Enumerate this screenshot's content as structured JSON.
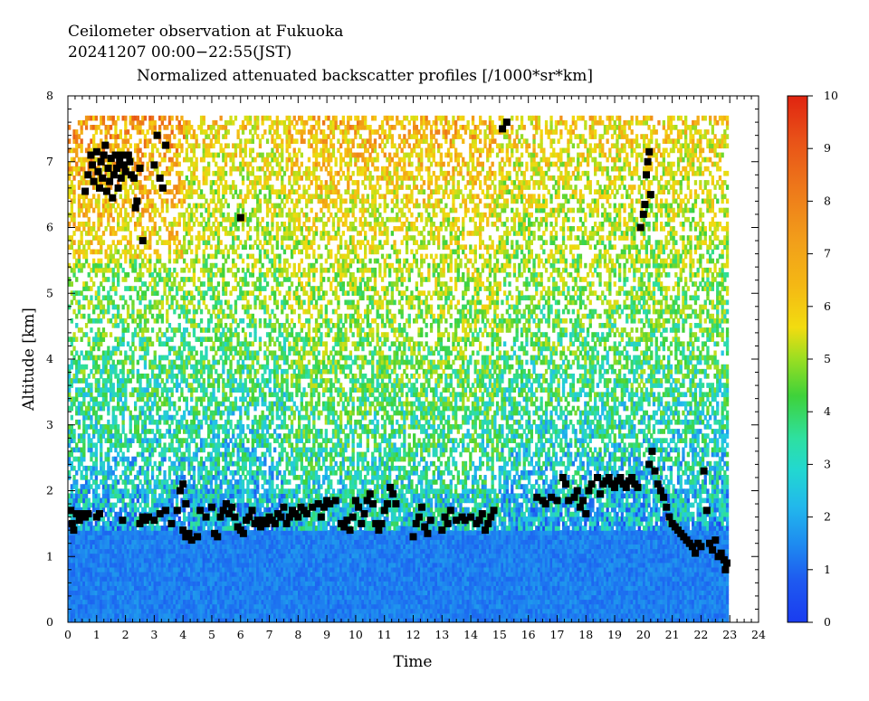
{
  "chart_data": {
    "type": "heatmap",
    "title_lines": [
      "Ceilometer observation at Fukuoka",
      "20241207  00:00−22:55(JST)"
    ],
    "subtitle": "Normalized attenuated backscatter profiles [/1000*sr*km]",
    "xlabel": "Time",
    "ylabel": "Altitude [km]",
    "xlim": [
      0,
      24
    ],
    "ylim": [
      0,
      8
    ],
    "x_ticks": [
      "0",
      "1",
      "2",
      "3",
      "4",
      "5",
      "6",
      "7",
      "8",
      "9",
      "10",
      "11",
      "12",
      "13",
      "14",
      "15",
      "16",
      "17",
      "18",
      "19",
      "20",
      "21",
      "22",
      "23",
      "24"
    ],
    "y_ticks": [
      "0",
      "1",
      "2",
      "3",
      "4",
      "5",
      "6",
      "7",
      "8"
    ],
    "data_end_time": 22.92,
    "colorbar": {
      "range": [
        0,
        10
      ],
      "ticks": [
        "0",
        "1",
        "2",
        "3",
        "4",
        "5",
        "6",
        "7",
        "8",
        "9",
        "10"
      ],
      "colors": [
        "#1a3cf0",
        "#1e7ef0",
        "#22c6e8",
        "#2ee0a0",
        "#3ed23a",
        "#b4e01e",
        "#f2dc10",
        "#f4b814",
        "#f08a1a",
        "#e85a18",
        "#e02410"
      ]
    },
    "cloud_base_series": {
      "name": "cloud base",
      "points": [
        [
          0.1,
          1.7
        ],
        [
          0.15,
          1.5
        ],
        [
          0.2,
          1.4
        ],
        [
          0.3,
          1.65
        ],
        [
          0.4,
          1.55
        ],
        [
          0.5,
          1.65
        ],
        [
          0.6,
          1.6
        ],
        [
          0.7,
          1.65
        ],
        [
          1.0,
          1.6
        ],
        [
          1.1,
          1.65
        ],
        [
          1.9,
          1.55
        ],
        [
          2.5,
          1.5
        ],
        [
          2.6,
          1.6
        ],
        [
          2.7,
          1.55
        ],
        [
          2.8,
          1.6
        ],
        [
          3.0,
          1.55
        ],
        [
          3.2,
          1.65
        ],
        [
          3.4,
          1.7
        ],
        [
          3.6,
          1.5
        ],
        [
          3.8,
          1.7
        ],
        [
          3.9,
          2.0
        ],
        [
          4.0,
          2.1
        ],
        [
          4.1,
          1.8
        ],
        [
          4.0,
          1.4
        ],
        [
          4.1,
          1.3
        ],
        [
          4.2,
          1.35
        ],
        [
          4.3,
          1.25
        ],
        [
          4.5,
          1.3
        ],
        [
          4.6,
          1.7
        ],
        [
          4.8,
          1.6
        ],
        [
          5.0,
          1.75
        ],
        [
          5.1,
          1.35
        ],
        [
          5.2,
          1.3
        ],
        [
          5.3,
          1.6
        ],
        [
          5.4,
          1.7
        ],
        [
          5.5,
          1.8
        ],
        [
          5.6,
          1.65
        ],
        [
          5.7,
          1.75
        ],
        [
          5.8,
          1.6
        ],
        [
          5.9,
          1.45
        ],
        [
          6.0,
          1.4
        ],
        [
          6.1,
          1.35
        ],
        [
          6.2,
          1.55
        ],
        [
          6.3,
          1.6
        ],
        [
          6.4,
          1.7
        ],
        [
          6.5,
          1.5
        ],
        [
          6.6,
          1.55
        ],
        [
          6.7,
          1.45
        ],
        [
          6.8,
          1.55
        ],
        [
          6.9,
          1.5
        ],
        [
          7.0,
          1.6
        ],
        [
          7.1,
          1.55
        ],
        [
          7.2,
          1.5
        ],
        [
          7.3,
          1.65
        ],
        [
          7.4,
          1.6
        ],
        [
          7.5,
          1.75
        ],
        [
          7.6,
          1.5
        ],
        [
          7.7,
          1.6
        ],
        [
          7.8,
          1.7
        ],
        [
          7.9,
          1.65
        ],
        [
          8.0,
          1.6
        ],
        [
          8.1,
          1.75
        ],
        [
          8.2,
          1.7
        ],
        [
          8.3,
          1.65
        ],
        [
          8.5,
          1.75
        ],
        [
          8.7,
          1.8
        ],
        [
          8.8,
          1.6
        ],
        [
          8.9,
          1.75
        ],
        [
          9.0,
          1.85
        ],
        [
          9.1,
          1.8
        ],
        [
          9.3,
          1.85
        ],
        [
          9.5,
          1.5
        ],
        [
          9.6,
          1.45
        ],
        [
          9.7,
          1.55
        ],
        [
          9.8,
          1.4
        ],
        [
          9.9,
          1.6
        ],
        [
          10.0,
          1.85
        ],
        [
          10.1,
          1.75
        ],
        [
          10.2,
          1.5
        ],
        [
          10.3,
          1.65
        ],
        [
          10.4,
          1.85
        ],
        [
          10.5,
          1.95
        ],
        [
          10.6,
          1.8
        ],
        [
          10.7,
          1.5
        ],
        [
          10.8,
          1.4
        ],
        [
          10.9,
          1.5
        ],
        [
          11.0,
          1.7
        ],
        [
          11.1,
          1.8
        ],
        [
          11.2,
          2.05
        ],
        [
          11.3,
          1.95
        ],
        [
          11.4,
          1.8
        ],
        [
          12.0,
          1.3
        ],
        [
          12.1,
          1.5
        ],
        [
          12.2,
          1.6
        ],
        [
          12.3,
          1.75
        ],
        [
          12.4,
          1.45
        ],
        [
          12.5,
          1.35
        ],
        [
          12.6,
          1.55
        ],
        [
          13.0,
          1.4
        ],
        [
          13.1,
          1.6
        ],
        [
          13.2,
          1.5
        ],
        [
          13.3,
          1.7
        ],
        [
          13.5,
          1.55
        ],
        [
          13.7,
          1.6
        ],
        [
          13.8,
          1.55
        ],
        [
          14.0,
          1.6
        ],
        [
          14.2,
          1.5
        ],
        [
          14.3,
          1.55
        ],
        [
          14.4,
          1.65
        ],
        [
          14.5,
          1.4
        ],
        [
          14.6,
          1.5
        ],
        [
          14.7,
          1.6
        ],
        [
          14.8,
          1.7
        ],
        [
          15.1,
          7.5
        ],
        [
          15.25,
          7.6
        ],
        [
          16.3,
          1.9
        ],
        [
          16.5,
          1.85
        ],
        [
          16.6,
          1.8
        ],
        [
          16.8,
          1.9
        ],
        [
          17.0,
          1.85
        ],
        [
          17.2,
          2.2
        ],
        [
          17.3,
          2.1
        ],
        [
          17.4,
          1.85
        ],
        [
          17.6,
          1.9
        ],
        [
          17.7,
          2.0
        ],
        [
          17.8,
          1.75
        ],
        [
          17.9,
          1.85
        ],
        [
          18.0,
          1.65
        ],
        [
          18.1,
          2.0
        ],
        [
          18.2,
          2.1
        ],
        [
          18.4,
          2.2
        ],
        [
          18.5,
          1.95
        ],
        [
          18.6,
          2.1
        ],
        [
          18.7,
          2.15
        ],
        [
          18.8,
          2.2
        ],
        [
          18.9,
          2.1
        ],
        [
          19.0,
          2.05
        ],
        [
          19.1,
          2.15
        ],
        [
          19.2,
          2.2
        ],
        [
          19.3,
          2.1
        ],
        [
          19.4,
          2.05
        ],
        [
          19.5,
          2.15
        ],
        [
          19.6,
          2.2
        ],
        [
          19.7,
          2.1
        ],
        [
          19.8,
          2.05
        ],
        [
          19.9,
          6.0
        ],
        [
          20.0,
          6.2
        ],
        [
          20.05,
          6.35
        ],
        [
          20.1,
          6.8
        ],
        [
          20.15,
          7.0
        ],
        [
          20.2,
          7.15
        ],
        [
          20.25,
          6.5
        ],
        [
          20.2,
          2.4
        ],
        [
          20.3,
          2.6
        ],
        [
          20.4,
          2.3
        ],
        [
          20.5,
          2.1
        ],
        [
          20.6,
          2.0
        ],
        [
          20.7,
          1.9
        ],
        [
          20.8,
          1.75
        ],
        [
          20.9,
          1.6
        ],
        [
          21.0,
          1.5
        ],
        [
          21.1,
          1.45
        ],
        [
          21.2,
          1.4
        ],
        [
          21.3,
          1.35
        ],
        [
          21.4,
          1.3
        ],
        [
          21.5,
          1.25
        ],
        [
          21.6,
          1.2
        ],
        [
          21.7,
          1.15
        ],
        [
          21.8,
          1.05
        ],
        [
          21.9,
          1.2
        ],
        [
          22.0,
          1.15
        ],
        [
          22.1,
          2.3
        ],
        [
          22.2,
          1.7
        ],
        [
          22.3,
          1.2
        ],
        [
          22.4,
          1.1
        ],
        [
          22.5,
          1.25
        ],
        [
          22.6,
          1.0
        ],
        [
          22.7,
          1.05
        ],
        [
          22.8,
          0.95
        ],
        [
          22.85,
          0.8
        ],
        [
          22.9,
          0.9
        ],
        [
          0.6,
          6.55
        ],
        [
          0.7,
          6.8
        ],
        [
          0.8,
          7.1
        ],
        [
          0.85,
          6.95
        ],
        [
          0.9,
          6.7
        ],
        [
          1.0,
          7.15
        ],
        [
          1.05,
          6.85
        ],
        [
          1.1,
          6.6
        ],
        [
          1.15,
          7.0
        ],
        [
          1.2,
          6.75
        ],
        [
          1.25,
          7.1
        ],
        [
          1.3,
          7.25
        ],
        [
          1.35,
          6.55
        ],
        [
          1.4,
          6.9
        ],
        [
          1.45,
          6.7
        ],
        [
          1.5,
          7.05
        ],
        [
          1.55,
          6.45
        ],
        [
          1.6,
          6.8
        ],
        [
          1.65,
          7.1
        ],
        [
          1.7,
          6.9
        ],
        [
          1.75,
          6.6
        ],
        [
          1.8,
          7.0
        ],
        [
          1.85,
          6.75
        ],
        [
          1.9,
          7.1
        ],
        [
          1.95,
          6.95
        ],
        [
          2.0,
          6.85
        ],
        [
          2.1,
          7.1
        ],
        [
          2.15,
          7.0
        ],
        [
          2.2,
          6.8
        ],
        [
          2.3,
          6.75
        ],
        [
          2.4,
          6.4
        ],
        [
          2.35,
          6.3
        ],
        [
          2.5,
          6.9
        ],
        [
          2.6,
          5.8
        ],
        [
          3.0,
          6.95
        ],
        [
          3.1,
          7.4
        ],
        [
          3.2,
          6.75
        ],
        [
          3.3,
          6.6
        ],
        [
          3.4,
          7.25
        ],
        [
          6.0,
          6.15
        ]
      ]
    }
  }
}
